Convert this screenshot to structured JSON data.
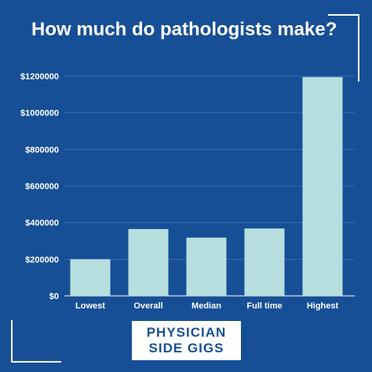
{
  "title": "How much do pathologists make?",
  "brand": {
    "line1": "PHYSICIAN",
    "line2": "SIDE GIGS"
  },
  "colors": {
    "background": "#174f96",
    "bar": "#b7dfe0",
    "grid": "#3a6bab",
    "text": "#ffffff"
  },
  "chart_data": {
    "type": "bar",
    "title": "How much do pathologists make?",
    "categories": [
      "Lowest",
      "Overall",
      "Median",
      "Full time",
      "Highest"
    ],
    "values": [
      200000,
      365000,
      318000,
      368000,
      1195000
    ],
    "ylim": [
      0,
      1200000
    ],
    "yticks": [
      0,
      200000,
      400000,
      600000,
      800000,
      1000000,
      1200000
    ],
    "ytick_labels": [
      "$0",
      "$200000",
      "$400000",
      "$600000",
      "$800000",
      "$1000000",
      "$1200000"
    ],
    "grid": true,
    "legend": "none"
  }
}
